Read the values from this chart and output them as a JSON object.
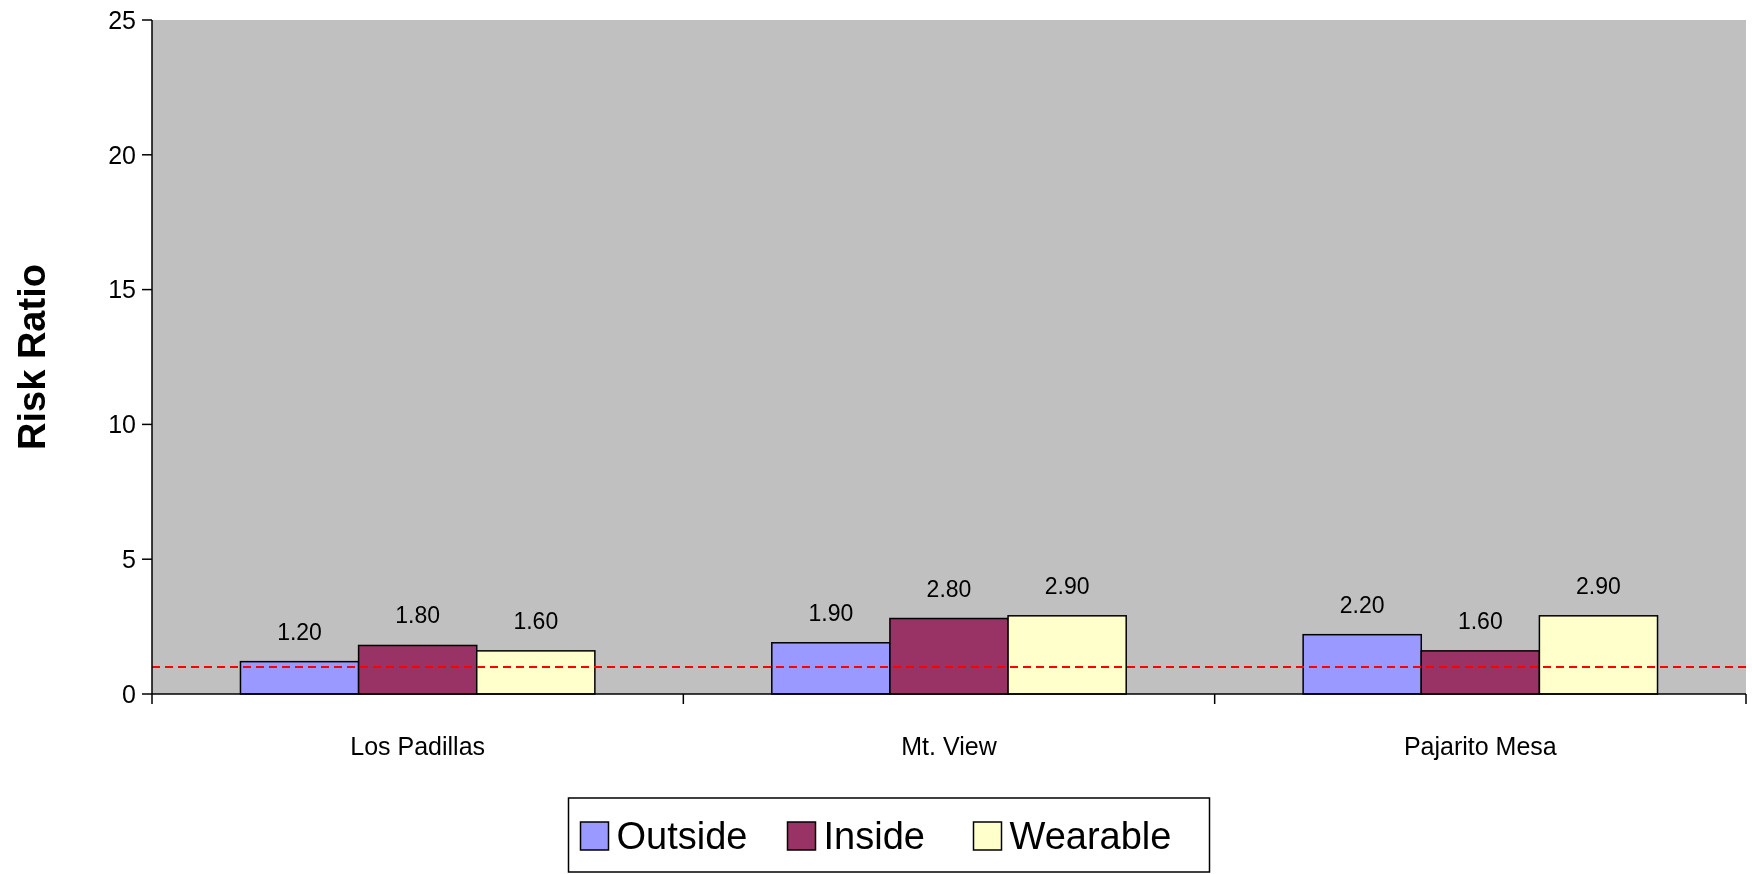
{
  "chart_data": {
    "type": "bar",
    "ylabel": "Risk Ratio",
    "categories": [
      "Los Padillas",
      "Mt. View",
      "Pajarito Mesa"
    ],
    "series": [
      {
        "name": "Outside",
        "color": "#9999ff",
        "values": [
          1.2,
          1.9,
          2.2
        ],
        "value_labels": [
          "1.20",
          "1.90",
          "2.20"
        ]
      },
      {
        "name": "Inside",
        "color": "#993366",
        "values": [
          1.8,
          2.8,
          1.6
        ],
        "value_labels": [
          "1.80",
          "2.80",
          "1.60"
        ]
      },
      {
        "name": "Wearable",
        "color": "#ffffcc",
        "values": [
          1.6,
          2.9,
          2.9
        ],
        "value_labels": [
          "1.60",
          "2.90",
          "2.90"
        ]
      }
    ],
    "ylim": [
      0,
      25
    ],
    "yticks": [
      0,
      5,
      10,
      15,
      20,
      25
    ],
    "grid": false,
    "legend": "bottom",
    "ref_lines": [
      {
        "axis": "y",
        "value": 1,
        "color": "#ff0000",
        "line_style": "dashed"
      }
    ]
  }
}
